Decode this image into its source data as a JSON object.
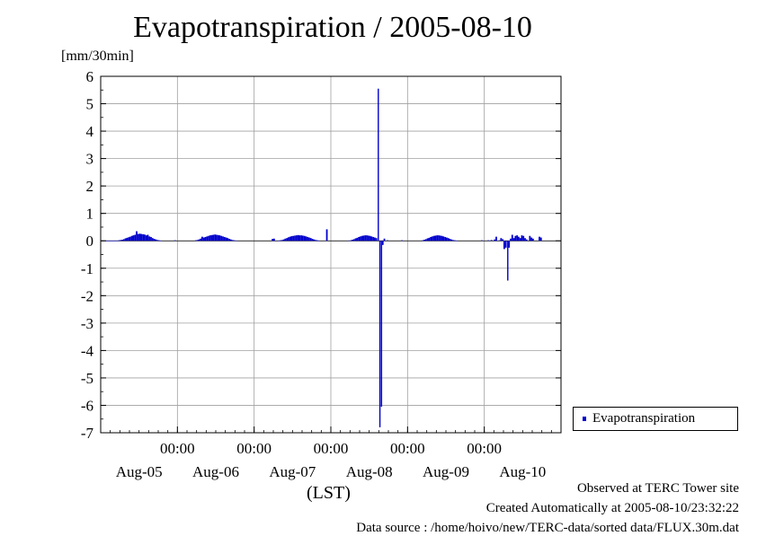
{
  "title": "Evapotranspiration / 2005-08-10",
  "y_unit": "[mm/30min]",
  "time_zone_label": "(LST)",
  "legend": {
    "label": "Evapotranspiration",
    "color": "#0000cc"
  },
  "footer": {
    "observed": "Observed at TERC Tower site",
    "created": "Created Automatically at 2005-08-10/23:32:22",
    "source": "Data source : /home/hoivo/new/TERC-data/sorted  data/FLUX.30m.dat"
  },
  "chart_data": {
    "type": "bar",
    "title": "Evapotranspiration / 2005-08-10",
    "ylabel": "[mm/30min]",
    "xlabel": "(LST)",
    "ylim": [
      -7,
      6
    ],
    "xlim_days": [
      0,
      6
    ],
    "grid": true,
    "legend_position": "right",
    "yticks": [
      6,
      5,
      4,
      3,
      2,
      1,
      0,
      -1,
      -2,
      -3,
      -4,
      -5,
      -6,
      -7
    ],
    "x_time_labels": [
      "00:00",
      "00:00",
      "00:00",
      "00:00",
      "00:00"
    ],
    "x_date_labels": [
      "Aug-05",
      "Aug-06",
      "Aug-07",
      "Aug-08",
      "Aug-09",
      "Aug-10"
    ],
    "series": [
      {
        "name": "Evapotranspiration",
        "color": "#0000cc",
        "x_start": "2005-08-05 00:00",
        "interval_minutes": 30,
        "values": [
          0.01,
          0.01,
          0.01,
          0.01,
          0.01,
          0.01,
          0.01,
          0.01,
          0.01,
          0.01,
          0.01,
          0.02,
          0.03,
          0.04,
          0.06,
          0.09,
          0.11,
          0.13,
          0.15,
          0.18,
          0.2,
          0.22,
          0.35,
          0.25,
          0.26,
          0.25,
          0.24,
          0.23,
          0.2,
          0.22,
          0.16,
          0.14,
          0.1,
          0.07,
          0.05,
          0.03,
          0.02,
          0.01,
          0.0,
          0.0,
          0.0,
          0.0,
          0.0,
          0.0,
          0.0,
          0.0,
          0.02,
          0.0,
          0.0,
          0.0,
          0.0,
          0.0,
          0.0,
          0.0,
          0.0,
          0.0,
          0.0,
          0.0,
          0.0,
          0.02,
          0.03,
          0.05,
          0.08,
          0.15,
          0.12,
          0.14,
          0.16,
          0.18,
          0.2,
          0.21,
          0.22,
          0.23,
          0.22,
          0.21,
          0.2,
          0.18,
          0.16,
          0.14,
          0.12,
          0.1,
          0.07,
          0.05,
          0.03,
          0.02,
          0.01,
          0.0,
          0.0,
          0.0,
          0.0,
          0.0,
          0.0,
          0.0,
          0.0,
          0.0,
          0.0,
          0.0,
          0.0,
          0.0,
          0.0,
          0.0,
          0.0,
          0.0,
          0.0,
          0.0,
          0.0,
          0.0,
          0.0,
          0.07,
          0.08,
          0.0,
          0.0,
          0.01,
          0.02,
          0.03,
          0.05,
          0.08,
          0.1,
          0.13,
          0.15,
          0.17,
          0.18,
          0.19,
          0.2,
          0.21,
          0.2,
          0.2,
          0.19,
          0.18,
          0.16,
          0.14,
          0.12,
          0.1,
          0.07,
          0.05,
          0.03,
          0.02,
          0.01,
          0.0,
          0.0,
          0.0,
          0.0,
          0.42,
          0.0,
          0.0,
          0.0,
          0.0,
          0.0,
          0.0,
          0.0,
          0.0,
          0.0,
          0.0,
          0.0,
          0.0,
          0.0,
          0.01,
          0.02,
          0.04,
          0.06,
          0.09,
          0.11,
          0.14,
          0.16,
          0.18,
          0.19,
          0.2,
          0.2,
          0.19,
          0.18,
          0.16,
          0.14,
          0.12,
          0.1,
          5.55,
          -6.8,
          -6.05,
          -0.15,
          0.08,
          0.0,
          0.02,
          0.0,
          0.0,
          0.0,
          0.0,
          0.0,
          0.0,
          0.0,
          0.0,
          0.02,
          0.0,
          0.0,
          0.0,
          0.0,
          0.0,
          0.0,
          0.0,
          0.0,
          0.0,
          0.0,
          0.0,
          0.0,
          0.02,
          0.04,
          0.06,
          0.09,
          0.11,
          0.14,
          0.16,
          0.18,
          0.19,
          0.2,
          0.2,
          0.19,
          0.18,
          0.16,
          0.14,
          0.12,
          0.1,
          0.07,
          0.05,
          0.03,
          0.02,
          0.01,
          0.0,
          0.0,
          0.0,
          0.0,
          0.0,
          0.0,
          0.0,
          0.0,
          0.0,
          0.0,
          0.0,
          0.0,
          0.0,
          0.0,
          0.0,
          0.02,
          0.0,
          0.0,
          0.0,
          0.02,
          0.0,
          0.03,
          0.0,
          0.05,
          0.15,
          0.0,
          0.02,
          0.1,
          0.06,
          -0.3,
          -0.25,
          -1.45,
          -0.25,
          0.08,
          0.22,
          0.1,
          0.18,
          0.2,
          0.15,
          0.1,
          0.2,
          0.18,
          0.1,
          0.05,
          0.0,
          0.18,
          0.12,
          0.08,
          0.0,
          0.0,
          0.0,
          0.15,
          0.12
        ]
      }
    ]
  }
}
